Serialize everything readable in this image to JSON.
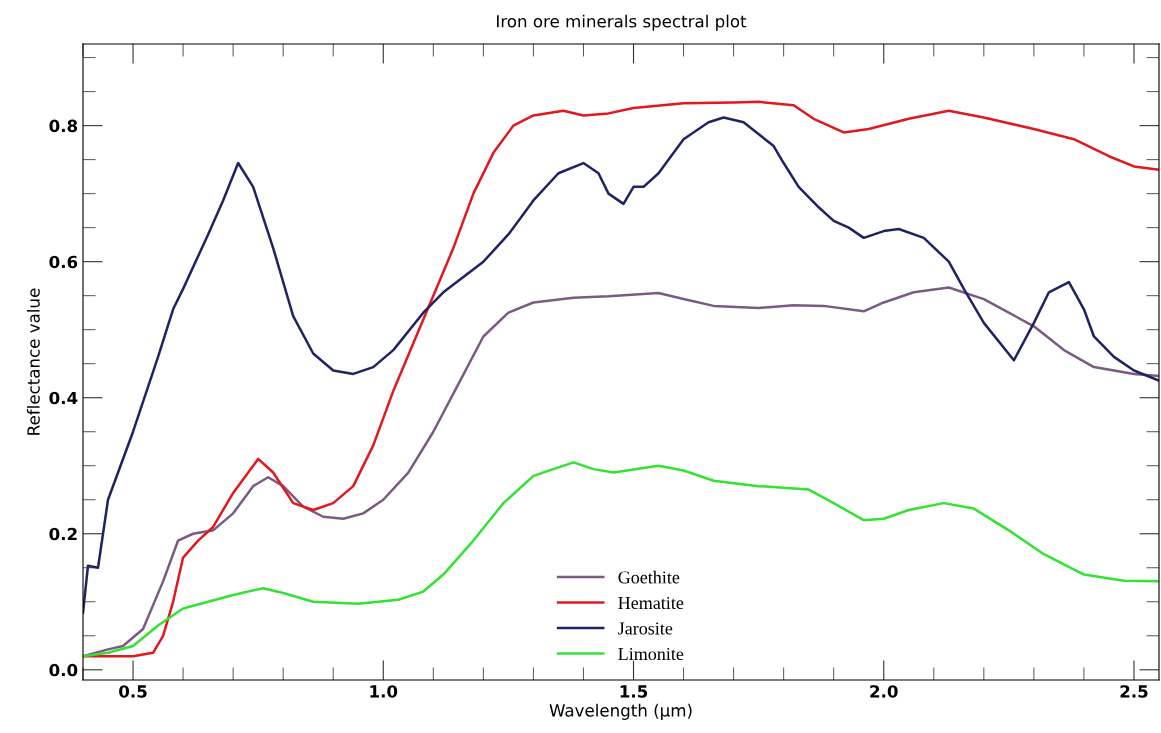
{
  "chart_data": {
    "type": "line",
    "title": "Iron ore minerals spectral plot",
    "xlabel": "Wavelength (µm)",
    "ylabel": "Reflectance value",
    "xlim": [
      0.4,
      2.55
    ],
    "ylim": [
      -0.015,
      0.92
    ],
    "xticks": [
      {
        "value": 0.5,
        "label": "0.5"
      },
      {
        "value": 1.0,
        "label": "1.0"
      },
      {
        "value": 1.5,
        "label": "1.5"
      },
      {
        "value": 2.0,
        "label": "2.0"
      },
      {
        "value": 2.5,
        "label": "2.5"
      }
    ],
    "yticks": [
      {
        "value": 0,
        "label": "0.0"
      },
      {
        "value": 0.2,
        "label": "0.2"
      },
      {
        "value": 0.4,
        "label": "0.4"
      },
      {
        "value": 0.6,
        "label": "0.6"
      },
      {
        "value": 0.8,
        "label": "0.8"
      }
    ],
    "grid": false,
    "legend": "bottom",
    "marker": "none",
    "line_style": "solid",
    "series": [
      {
        "name": "Goethite",
        "color": "#7b5a84",
        "x": [
          0.4,
          0.45,
          0.48,
          0.52,
          0.56,
          0.59,
          0.62,
          0.66,
          0.7,
          0.74,
          0.77,
          0.8,
          0.84,
          0.88,
          0.92,
          0.96,
          1.0,
          1.05,
          1.1,
          1.15,
          1.2,
          1.25,
          1.3,
          1.38,
          1.45,
          1.55,
          1.6,
          1.66,
          1.75,
          1.82,
          1.88,
          1.96,
          2.0,
          2.06,
          2.13,
          2.2,
          2.3,
          2.36,
          2.42,
          2.5,
          2.55
        ],
        "values": [
          0.02,
          0.03,
          0.035,
          0.06,
          0.13,
          0.19,
          0.2,
          0.205,
          0.23,
          0.27,
          0.283,
          0.27,
          0.24,
          0.225,
          0.222,
          0.23,
          0.25,
          0.29,
          0.35,
          0.42,
          0.49,
          0.525,
          0.54,
          0.547,
          0.549,
          0.554,
          0.545,
          0.535,
          0.532,
          0.536,
          0.535,
          0.527,
          0.54,
          0.555,
          0.562,
          0.545,
          0.505,
          0.47,
          0.445,
          0.435,
          0.432
        ]
      },
      {
        "name": "Hematite",
        "color": "#e0191e",
        "x": [
          0.4,
          0.5,
          0.54,
          0.56,
          0.58,
          0.6,
          0.63,
          0.66,
          0.7,
          0.75,
          0.78,
          0.82,
          0.86,
          0.9,
          0.94,
          0.98,
          1.02,
          1.06,
          1.1,
          1.14,
          1.18,
          1.22,
          1.26,
          1.3,
          1.36,
          1.4,
          1.45,
          1.5,
          1.6,
          1.7,
          1.75,
          1.82,
          1.86,
          1.92,
          1.97,
          2.05,
          2.13,
          2.2,
          2.3,
          2.38,
          2.45,
          2.5,
          2.55
        ],
        "values": [
          0.02,
          0.02,
          0.025,
          0.05,
          0.1,
          0.165,
          0.19,
          0.21,
          0.26,
          0.31,
          0.29,
          0.245,
          0.235,
          0.245,
          0.27,
          0.33,
          0.41,
          0.48,
          0.55,
          0.62,
          0.7,
          0.76,
          0.8,
          0.815,
          0.822,
          0.815,
          0.818,
          0.826,
          0.833,
          0.834,
          0.835,
          0.83,
          0.81,
          0.79,
          0.795,
          0.81,
          0.822,
          0.812,
          0.795,
          0.78,
          0.755,
          0.74,
          0.735
        ]
      },
      {
        "name": "Jarosite",
        "color": "#1f2363",
        "x": [
          0.4,
          0.41,
          0.43,
          0.45,
          0.5,
          0.55,
          0.58,
          0.6,
          0.65,
          0.68,
          0.71,
          0.74,
          0.78,
          0.82,
          0.86,
          0.9,
          0.94,
          0.98,
          1.02,
          1.08,
          1.12,
          1.2,
          1.25,
          1.3,
          1.35,
          1.4,
          1.43,
          1.45,
          1.48,
          1.5,
          1.52,
          1.55,
          1.6,
          1.65,
          1.68,
          1.72,
          1.78,
          1.8,
          1.83,
          1.87,
          1.9,
          1.93,
          1.96,
          2.0,
          2.03,
          2.08,
          2.13,
          2.16,
          2.2,
          2.26,
          2.3,
          2.33,
          2.37,
          2.4,
          2.42,
          2.46,
          2.5,
          2.55
        ],
        "values": [
          0.084,
          0.153,
          0.15,
          0.25,
          0.35,
          0.46,
          0.53,
          0.56,
          0.64,
          0.69,
          0.745,
          0.71,
          0.62,
          0.52,
          0.465,
          0.44,
          0.435,
          0.445,
          0.47,
          0.525,
          0.555,
          0.6,
          0.64,
          0.69,
          0.73,
          0.745,
          0.73,
          0.7,
          0.685,
          0.71,
          0.71,
          0.73,
          0.78,
          0.805,
          0.812,
          0.805,
          0.77,
          0.745,
          0.71,
          0.68,
          0.66,
          0.65,
          0.635,
          0.645,
          0.648,
          0.635,
          0.6,
          0.56,
          0.51,
          0.455,
          0.51,
          0.555,
          0.57,
          0.53,
          0.49,
          0.46,
          0.44,
          0.425
        ]
      },
      {
        "name": "Limonite",
        "color": "#33e233",
        "x": [
          0.4,
          0.45,
          0.5,
          0.55,
          0.6,
          0.65,
          0.7,
          0.76,
          0.8,
          0.86,
          0.95,
          1.03,
          1.08,
          1.12,
          1.18,
          1.24,
          1.3,
          1.38,
          1.42,
          1.46,
          1.55,
          1.6,
          1.66,
          1.75,
          1.85,
          1.9,
          1.96,
          2.0,
          2.05,
          2.12,
          2.18,
          2.25,
          2.32,
          2.4,
          2.48,
          2.55
        ],
        "values": [
          0.02,
          0.025,
          0.035,
          0.065,
          0.09,
          0.1,
          0.11,
          0.12,
          0.113,
          0.1,
          0.097,
          0.103,
          0.115,
          0.14,
          0.19,
          0.245,
          0.285,
          0.305,
          0.295,
          0.29,
          0.3,
          0.293,
          0.278,
          0.27,
          0.265,
          0.245,
          0.22,
          0.222,
          0.235,
          0.245,
          0.237,
          0.205,
          0.17,
          0.14,
          0.131,
          0.13
        ]
      }
    ]
  }
}
